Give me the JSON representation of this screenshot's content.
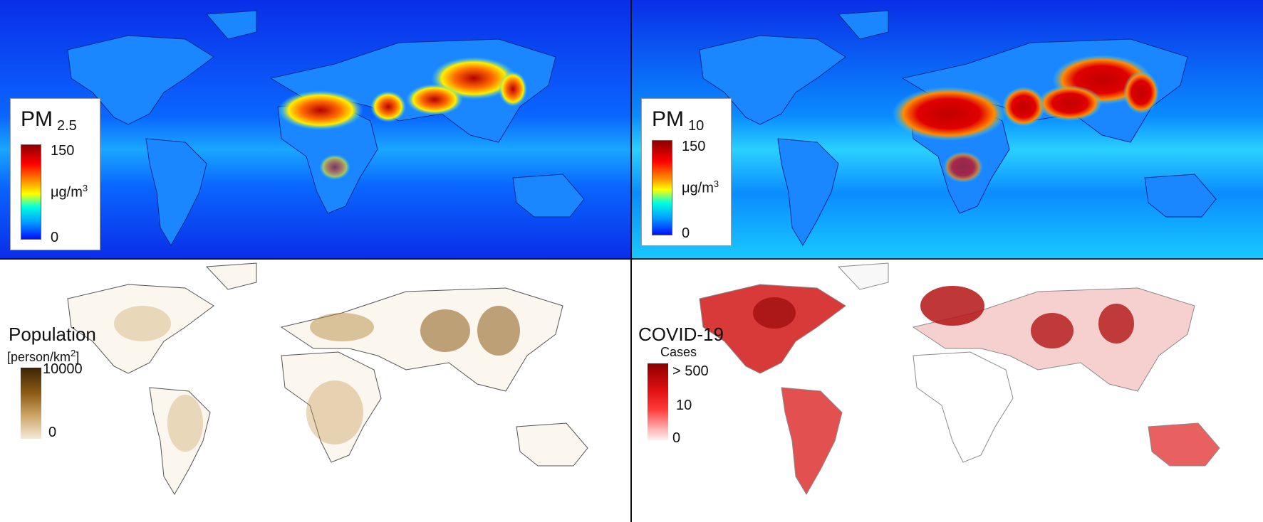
{
  "panels": {
    "pm25": {
      "legend_title": "PM",
      "legend_subscript": "2.5",
      "max_label": "150",
      "min_label": "0",
      "unit_base": "μg/m",
      "unit_exp": "3",
      "colors": {
        "ocean": "#0a3cff",
        "high": "#b40000"
      }
    },
    "pm10": {
      "legend_title": "PM",
      "legend_subscript": "10",
      "max_label": "150",
      "min_label": "0",
      "unit_base": "μg/m",
      "unit_exp": "3",
      "colors": {
        "ocean": "#0a50ff",
        "high": "#c00000"
      }
    },
    "population": {
      "legend_title": "Population",
      "unit_open": "[person/km",
      "unit_exp": "2",
      "unit_close": "]",
      "max_label": "10000",
      "min_label": "0",
      "colors": {
        "high": "#4a2c08",
        "low": "#f7efe0"
      }
    },
    "covid": {
      "legend_title": "COVID-19",
      "legend_subtitle": "Cases",
      "max_label": "> 500",
      "mid_label": "10",
      "min_label": "0",
      "colors": {
        "high": "#8b0000",
        "mid": "#ff2a2a",
        "low": "#ffe8e8"
      }
    }
  }
}
